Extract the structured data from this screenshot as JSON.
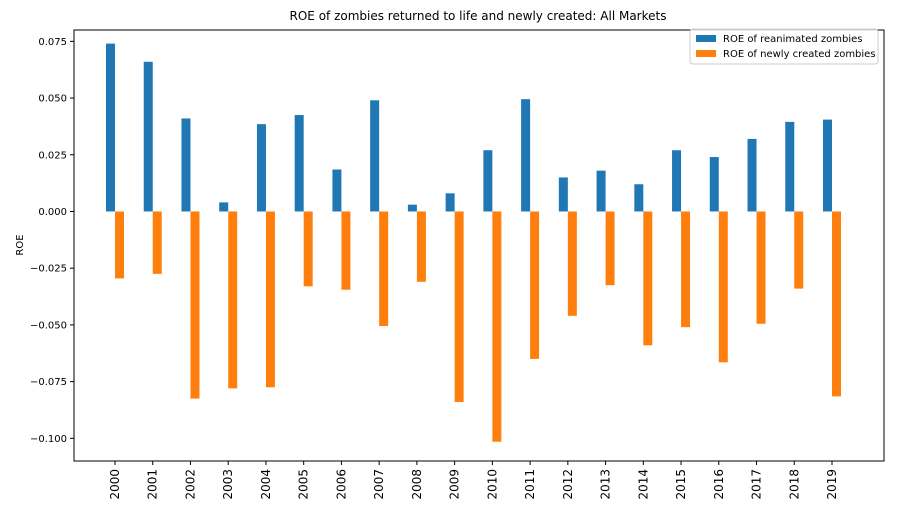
{
  "chart_data": {
    "type": "bar",
    "title": "ROE of zombies returned to life and newly created: All Markets",
    "xlabel": "",
    "ylabel": "ROE",
    "categories": [
      "2000",
      "2001",
      "2002",
      "2003",
      "2004",
      "2005",
      "2006",
      "2007",
      "2008",
      "2009",
      "2010",
      "2011",
      "2012",
      "2013",
      "2014",
      "2015",
      "2016",
      "2017",
      "2018",
      "2019"
    ],
    "series": [
      {
        "name": "ROE of reanimated zombies",
        "color": "#1f77b4",
        "values": [
          0.074,
          0.066,
          0.041,
          0.004,
          0.0385,
          0.0425,
          0.0185,
          0.049,
          0.003,
          0.008,
          0.027,
          0.0495,
          0.015,
          0.018,
          0.012,
          0.027,
          0.024,
          0.032,
          0.0395,
          0.0405
        ]
      },
      {
        "name": "ROE of newly created zombies",
        "color": "#ff7f0e",
        "values": [
          -0.0295,
          -0.0275,
          -0.0825,
          -0.078,
          -0.0775,
          -0.033,
          -0.0345,
          -0.0505,
          -0.031,
          -0.084,
          -0.1015,
          -0.065,
          -0.046,
          -0.0325,
          -0.059,
          -0.051,
          -0.0665,
          -0.0495,
          -0.034,
          -0.0815
        ]
      }
    ],
    "ylim": [
      -0.11,
      0.08
    ],
    "yticks": [
      -0.1,
      -0.075,
      -0.05,
      -0.025,
      0.0,
      0.025,
      0.05,
      0.075
    ],
    "ytick_labels": [
      "−0.100",
      "−0.075",
      "−0.050",
      "−0.025",
      "0.000",
      "0.025",
      "0.050",
      "0.075"
    ],
    "legend_position": "top-right",
    "grid": false
  }
}
